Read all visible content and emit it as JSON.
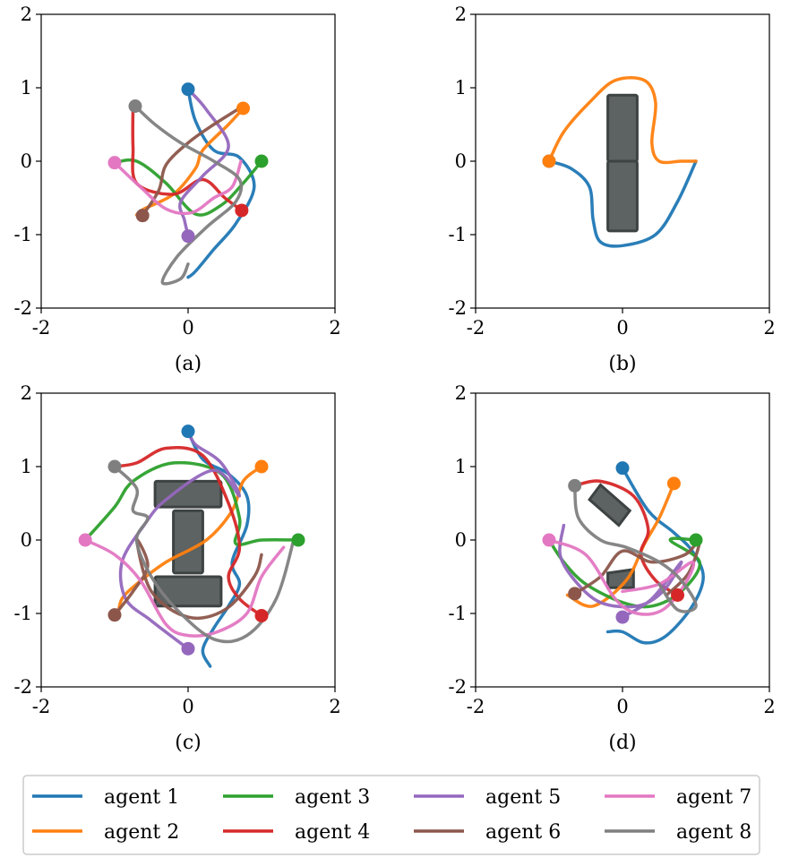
{
  "colors": {
    "agent_1": "#1f77b4",
    "agent_2": "#ff7f0e",
    "agent_3": "#2ca02c",
    "agent_4": "#d62728",
    "agent_5": "#9467bd",
    "agent_6": "#8c564b",
    "agent_7": "#e377c2",
    "agent_8": "#7f7f7f",
    "obstacle_fill": "#5d6262",
    "obstacle_edge": "#3d4242"
  },
  "chart_data": [
    {
      "type": "line",
      "caption": "(a)",
      "xlim": [
        -2,
        2
      ],
      "ylim": [
        -2,
        2
      ],
      "xticks": [
        "-2",
        "0",
        "2"
      ],
      "yticks": [
        "-2",
        "-1",
        "0",
        "1",
        "2"
      ],
      "grid": false,
      "obstacles": [],
      "series": [
        {
          "name": "agent 1",
          "color": "#1f77b4",
          "x": [
            0.0,
            0.1,
            0.35,
            0.7,
            0.9,
            0.65,
            0.35,
            0.1,
            0.0
          ],
          "y": [
            0.98,
            0.55,
            0.15,
            0.05,
            -0.35,
            -0.85,
            -1.2,
            -1.5,
            -1.58
          ]
        },
        {
          "name": "agent 2",
          "color": "#ff7f0e",
          "x": [
            0.75,
            0.55,
            0.2,
            0.1,
            -0.2,
            -0.6,
            -0.7
          ],
          "y": [
            0.72,
            0.5,
            0.15,
            -0.1,
            -0.45,
            -0.65,
            -0.73
          ]
        },
        {
          "name": "agent 3",
          "color": "#2ca02c",
          "x": [
            1.0,
            0.75,
            0.45,
            0.1,
            -0.3,
            -0.7,
            -1.0
          ],
          "y": [
            0.0,
            -0.3,
            -0.6,
            -0.72,
            -0.3,
            0.0,
            -0.02
          ]
        },
        {
          "name": "agent 4",
          "color": "#d62728",
          "x": [
            0.73,
            0.5,
            0.2,
            -0.2,
            -0.7,
            -0.75,
            -0.75
          ],
          "y": [
            -0.67,
            -0.5,
            -0.25,
            -0.45,
            -0.3,
            0.2,
            0.75
          ]
        },
        {
          "name": "agent 5",
          "color": "#9467bd",
          "x": [
            0.0,
            -0.05,
            -0.1,
            0.2,
            0.55,
            0.25,
            0.0
          ],
          "y": [
            -1.02,
            -0.8,
            -0.55,
            -0.2,
            0.2,
            0.7,
            0.98
          ]
        },
        {
          "name": "agent 6",
          "color": "#8c564b",
          "x": [
            -0.62,
            -0.4,
            -0.3,
            0.0,
            0.35,
            0.7
          ],
          "y": [
            -0.74,
            -0.4,
            -0.05,
            0.25,
            0.5,
            0.72
          ]
        },
        {
          "name": "agent 7",
          "color": "#e377c2",
          "x": [
            -1.0,
            -0.65,
            -0.3,
            0.05,
            0.35,
            0.6,
            0.72
          ],
          "y": [
            -0.02,
            -0.35,
            -0.65,
            -0.7,
            -0.5,
            -0.35,
            0.0
          ]
        },
        {
          "name": "agent 8",
          "color": "#7f7f7f",
          "x": [
            -0.72,
            -0.45,
            -0.1,
            0.35,
            0.7,
            0.65,
            0.25,
            -0.15,
            -0.35,
            -0.1,
            0.0
          ],
          "y": [
            0.75,
            0.5,
            0.25,
            0.0,
            -0.25,
            -0.55,
            -0.9,
            -1.3,
            -1.65,
            -1.6,
            -1.4
          ]
        }
      ]
    },
    {
      "type": "line",
      "caption": "(b)",
      "xlim": [
        -2,
        2
      ],
      "ylim": [
        -2,
        2
      ],
      "xticks": [
        "-2",
        "0",
        "2"
      ],
      "yticks": [
        "-2",
        "-1",
        "0",
        "1",
        "2"
      ],
      "grid": false,
      "obstacles": [
        {
          "x0": -0.2,
          "y0": -0.95,
          "x1": 0.2,
          "y1": 0.0
        },
        {
          "x0": -0.2,
          "y0": 0.0,
          "x1": 0.2,
          "y1": 0.9
        }
      ],
      "series": [
        {
          "name": "agent 1",
          "color": "#1f77b4",
          "x": [
            -1.0,
            -0.7,
            -0.45,
            -0.4,
            -0.3,
            0.0,
            0.45,
            0.75,
            1.0
          ],
          "y": [
            0.0,
            -0.1,
            -0.35,
            -0.8,
            -1.1,
            -1.15,
            -1.0,
            -0.55,
            0.0
          ]
        },
        {
          "name": "agent 2",
          "color": "#ff7f0e",
          "x": [
            -1.0,
            -0.8,
            -0.45,
            -0.1,
            0.3,
            0.45,
            0.4,
            0.5,
            0.8,
            1.0
          ],
          "y": [
            0.0,
            0.4,
            0.8,
            1.1,
            1.1,
            0.8,
            0.25,
            0.0,
            0.0,
            0.0
          ]
        }
      ]
    },
    {
      "type": "line",
      "caption": "(c)",
      "xlim": [
        -2,
        2
      ],
      "ylim": [
        -2,
        2
      ],
      "xticks": [
        "-2",
        "0",
        "2"
      ],
      "yticks": [
        "-2",
        "-1",
        "0",
        "1",
        "2"
      ],
      "grid": false,
      "obstacles": [
        {
          "x0": -0.45,
          "y0": 0.45,
          "x1": 0.45,
          "y1": 0.8
        },
        {
          "x0": -0.2,
          "y0": -0.45,
          "x1": 0.2,
          "y1": 0.4
        },
        {
          "x0": -0.45,
          "y0": -0.9,
          "x1": 0.45,
          "y1": -0.5
        }
      ],
      "series": [
        {
          "name": "agent 1",
          "color": "#1f77b4",
          "x": [
            0.0,
            0.2,
            0.55,
            0.8,
            0.8,
            0.6,
            0.7,
            0.55,
            0.35,
            0.2,
            0.3
          ],
          "y": [
            1.48,
            1.1,
            0.9,
            0.6,
            0.2,
            -0.3,
            -0.6,
            -0.9,
            -1.2,
            -1.5,
            -1.72
          ]
        },
        {
          "name": "agent 2",
          "color": "#ff7f0e",
          "x": [
            1.0,
            0.75,
            0.6,
            0.25,
            -0.3,
            -0.7,
            -0.9,
            -0.95
          ],
          "y": [
            1.0,
            0.8,
            0.4,
            0.0,
            -0.3,
            -0.6,
            -0.8,
            -1.0
          ]
        },
        {
          "name": "agent 3",
          "color": "#2ca02c",
          "x": [
            1.5,
            1.0,
            0.65,
            0.7,
            0.45,
            -0.2,
            -0.75,
            -1.0,
            -1.4
          ],
          "y": [
            0.0,
            0.0,
            -0.05,
            0.3,
            0.9,
            1.05,
            0.8,
            0.45,
            0.0
          ]
        },
        {
          "name": "agent 4",
          "color": "#d62728",
          "x": [
            1.0,
            0.7,
            0.55,
            0.7,
            0.55,
            0.2,
            -0.3,
            -0.7,
            -1.0
          ],
          "y": [
            -1.03,
            -0.8,
            -0.5,
            -0.1,
            0.5,
            1.15,
            1.25,
            1.05,
            1.0
          ]
        },
        {
          "name": "agent 5",
          "color": "#9467bd",
          "x": [
            0.0,
            -0.5,
            -0.85,
            -0.9,
            -0.6,
            -0.3,
            0.35,
            0.7,
            0.45,
            0.1,
            0.0
          ],
          "y": [
            -1.48,
            -1.1,
            -0.8,
            -0.3,
            0.2,
            0.55,
            0.95,
            0.6,
            1.05,
            1.3,
            1.48
          ]
        },
        {
          "name": "agent 6",
          "color": "#8c564b",
          "x": [
            -1.0,
            -0.75,
            -0.55,
            -0.7,
            -0.5,
            0.0,
            0.5,
            0.9,
            1.0
          ],
          "y": [
            -1.02,
            -0.7,
            -0.35,
            0.0,
            -0.7,
            -1.05,
            -0.95,
            -0.5,
            -0.2
          ]
        },
        {
          "name": "agent 7",
          "color": "#e377c2",
          "x": [
            -1.4,
            -1.0,
            -0.65,
            -0.3,
            0.0,
            0.4,
            0.8,
            1.0,
            1.3
          ],
          "y": [
            0.0,
            -0.2,
            -0.55,
            -1.15,
            -1.3,
            -1.25,
            -1.0,
            -0.5,
            -0.1
          ]
        },
        {
          "name": "agent 8",
          "color": "#7f7f7f",
          "x": [
            -1.0,
            -0.7,
            -0.75,
            -0.55,
            -0.7,
            -0.5,
            -0.15,
            0.35,
            0.8,
            1.2,
            1.45
          ],
          "y": [
            1.0,
            0.7,
            0.4,
            0.3,
            0.0,
            -0.5,
            -0.95,
            -1.35,
            -1.3,
            -0.8,
            0.05
          ]
        }
      ]
    },
    {
      "type": "line",
      "caption": "(d)",
      "xlim": [
        -2,
        2
      ],
      "ylim": [
        -2,
        2
      ],
      "xticks": [
        "-2",
        "0",
        "2"
      ],
      "yticks": [
        "-2",
        "-1",
        "0",
        "1",
        "2"
      ],
      "grid": false,
      "obstacles": [
        {
          "polygon": [
            [
              -0.45,
              0.55
            ],
            [
              -0.3,
              0.75
            ],
            [
              0.1,
              0.4
            ],
            [
              -0.05,
              0.2
            ]
          ]
        },
        {
          "polygon": [
            [
              -0.2,
              -0.45
            ],
            [
              0.15,
              -0.4
            ],
            [
              0.15,
              -0.65
            ],
            [
              -0.2,
              -0.65
            ]
          ]
        }
      ],
      "series": [
        {
          "name": "agent 1",
          "color": "#1f77b4",
          "x": [
            0.0,
            0.35,
            0.7,
            0.95,
            1.1,
            0.95,
            0.6,
            0.3,
            0.0,
            -0.2
          ],
          "y": [
            0.98,
            0.4,
            0.1,
            -0.15,
            -0.5,
            -0.9,
            -1.3,
            -1.4,
            -1.25,
            -1.25
          ]
        },
        {
          "name": "agent 2",
          "color": "#ff7f0e",
          "x": [
            0.7,
            0.5,
            0.3,
            0.05,
            -0.4,
            -0.75
          ],
          "y": [
            0.77,
            0.3,
            -0.05,
            -0.55,
            -0.9,
            -0.75
          ]
        },
        {
          "name": "agent 3",
          "color": "#2ca02c",
          "x": [
            1.0,
            0.65,
            1.05,
            0.8,
            0.4,
            0.0,
            -0.5,
            -0.8,
            -1.0
          ],
          "y": [
            0.0,
            0.0,
            -0.3,
            -0.7,
            -0.9,
            -0.85,
            -0.6,
            -0.3,
            0.0
          ]
        },
        {
          "name": "agent 4",
          "color": "#d62728",
          "x": [
            0.75,
            0.45,
            0.25,
            0.35,
            0.15,
            -0.3,
            -0.65
          ],
          "y": [
            -0.75,
            -0.55,
            -0.2,
            0.15,
            0.6,
            0.8,
            0.74
          ]
        },
        {
          "name": "agent 5",
          "color": "#9467bd",
          "x": [
            0.0,
            0.4,
            0.8,
            0.55,
            0.2,
            -0.3,
            -0.65,
            -0.85,
            -0.8
          ],
          "y": [
            -1.05,
            -0.8,
            -0.3,
            -0.7,
            -0.9,
            -0.85,
            -0.55,
            -0.2,
            0.2
          ]
        },
        {
          "name": "agent 6",
          "color": "#8c564b",
          "x": [
            -0.65,
            -0.3,
            0.0,
            0.4,
            0.85,
            1.05,
            0.9,
            0.6
          ],
          "y": [
            -0.73,
            -0.5,
            -0.15,
            -0.3,
            -0.2,
            0.0,
            -0.45,
            -0.75
          ]
        },
        {
          "name": "agent 7",
          "color": "#e377c2",
          "x": [
            -1.0,
            -0.5,
            -0.1,
            0.2,
            0.55,
            0.85,
            0.95,
            0.5,
            0.0
          ],
          "y": [
            0.0,
            -0.2,
            -0.8,
            -1.0,
            -0.95,
            -0.6,
            -0.3,
            -0.6,
            -0.7
          ]
        },
        {
          "name": "agent 8",
          "color": "#7f7f7f",
          "x": [
            -0.65,
            -0.6,
            -0.3,
            0.05,
            0.5,
            0.8,
            1.0,
            0.75,
            0.5
          ],
          "y": [
            0.74,
            0.3,
            0.0,
            -0.1,
            -0.3,
            -0.55,
            -0.9,
            -0.95,
            -0.6
          ]
        }
      ]
    }
  ],
  "legend": {
    "placement": "bottom-center",
    "entries": [
      {
        "label": "agent 1",
        "color": "#1f77b4"
      },
      {
        "label": "agent 2",
        "color": "#ff7f0e"
      },
      {
        "label": "agent 3",
        "color": "#2ca02c"
      },
      {
        "label": "agent 4",
        "color": "#d62728"
      },
      {
        "label": "agent 5",
        "color": "#9467bd"
      },
      {
        "label": "agent 6",
        "color": "#8c564b"
      },
      {
        "label": "agent 7",
        "color": "#e377c2"
      },
      {
        "label": "agent 8",
        "color": "#7f7f7f"
      }
    ]
  }
}
